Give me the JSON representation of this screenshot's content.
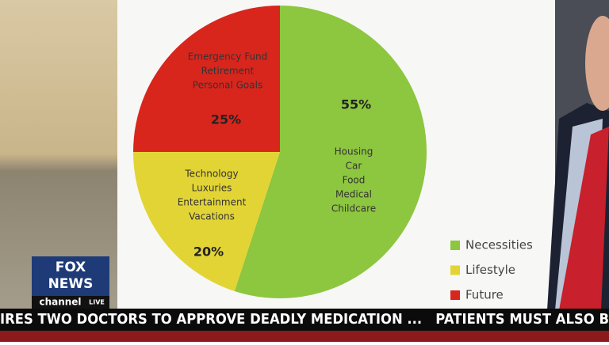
{
  "chart_data": {
    "type": "pie",
    "categories": [
      "Necessities",
      "Lifestyle",
      "Future"
    ],
    "values": [
      55,
      20,
      25
    ],
    "value_labels": [
      "55%",
      "20%",
      "25%"
    ],
    "colors": [
      "#8dc63f",
      "#e2d435",
      "#d8261d"
    ],
    "descriptions": [
      [
        "Housing",
        "Car",
        "Food",
        "Medical",
        "Childcare"
      ],
      [
        "Technology",
        "Luxuries",
        "Entertainment",
        "Vacations"
      ],
      [
        "Emergency Fund",
        "Retirement",
        "Personal Goals"
      ]
    ]
  },
  "ticker": "IRES TWO DOCTORS TO APPROVE DEADLY MEDICATION ...   PATIENTS MUST ALSO B",
  "logo": {
    "line1": "FOX",
    "line2": "NEWS",
    "line3": "channel",
    "badge": "LIVE"
  }
}
